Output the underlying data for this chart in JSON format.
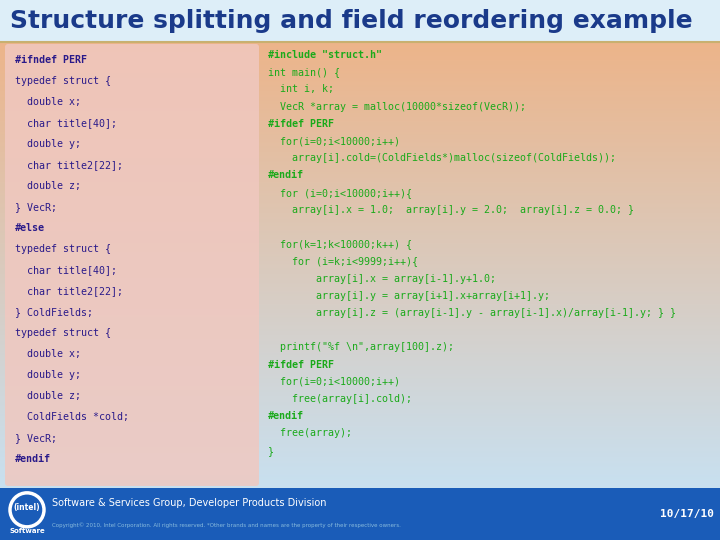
{
  "title": "Structure splitting and field reordering example",
  "title_color": "#1a3a8a",
  "title_fontsize": 18,
  "left_box_text_color": "#2a1a8a",
  "right_text_color": "#1aaa1a",
  "footer_bg": "#1a5cb8",
  "footer_text": "Software & Services Group, Developer Products Division",
  "footer_copy": "Copyright© 2010, Intel Corporation. All rights reserved. *Other brands and names are the property of their respective owners.",
  "footer_date": "10/17/10",
  "left_code": [
    "#ifndef PERF",
    "typedef struct {",
    "  double x;",
    "  char title[40];",
    "  double y;",
    "  char title2[22];",
    "  double z;",
    "} VecR;",
    "#else",
    "typedef struct {",
    "  char title[40];",
    "  char title2[22];",
    "} ColdFields;",
    "typedef struct {",
    "  double x;",
    "  double y;",
    "  double z;",
    "  ColdFields *cold;",
    "} VecR;",
    "#endif"
  ],
  "right_code": [
    "#include \"struct.h\"",
    "int main() {",
    "  int i, k;",
    "  VecR *array = malloc(10000*sizeof(VecR));",
    "#ifdef PERF",
    "  for(i=0;i<10000;i++)",
    "    array[i].cold=(ColdFields*)malloc(sizeof(ColdFields));",
    "#endif",
    "  for (i=0;i<10000;i++){",
    "    array[i].x = 1.0;  array[i].y = 2.0;  array[i].z = 0.0; }",
    "",
    "  for(k=1;k<10000;k++) {",
    "    for (i=k;i<9999;i++){",
    "        array[i].x = array[i-1].y+1.0;",
    "        array[i].y = array[i+1].x+array[i+1].y;",
    "        array[i].z = (array[i-1].y - array[i-1].x)/array[i-1].y; } }",
    "",
    "  printf(\"%f \\n\",array[100].z);",
    "#ifdef PERF",
    "  for(i=0;i<10000;i++)",
    "    free(array[i].cold);",
    "#endif",
    "  free(array);",
    "}"
  ],
  "fig_width": 7.2,
  "fig_height": 5.4,
  "dpi": 100
}
